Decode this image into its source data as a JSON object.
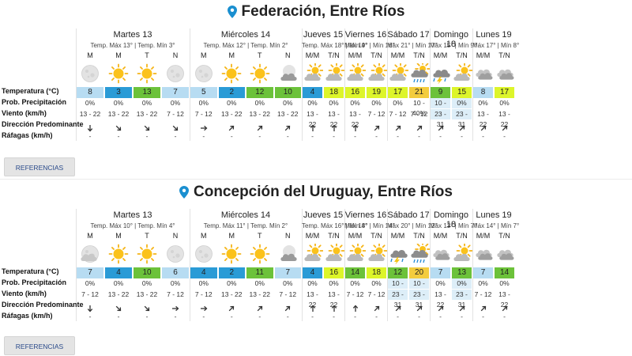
{
  "row_labels": {
    "temperature": "Temperatura (°C)",
    "precipitation": "Prob. Precipitación",
    "wind": "Viento (km/h)",
    "direction": "Dirección Predominante",
    "gusts": "Ráfagas (km/h)"
  },
  "refs_label": "REFERENCIAS",
  "colors": {
    "lightblue": "#b7dcf2",
    "blue": "#2a9bd6",
    "green": "#6cc23a",
    "yellow": "#ddf52a",
    "gold": "#f3cc3e"
  },
  "panels": [
    {
      "location": "Federación, Entre Ríos",
      "days": [
        {
          "name": "Martes 13",
          "minmax": "Temp. Máx 13° | Temp. Mín 3°",
          "slots": [
            {
              "label": "M",
              "icon": "moon-icon",
              "temp": "8",
              "color": "lightblue",
              "precip": "0%",
              "wind": "13 - 22",
              "dir": 180,
              "gust": "-",
              "hl": false
            },
            {
              "label": "M",
              "icon": "sun-icon",
              "temp": "3",
              "color": "blue",
              "precip": "0%",
              "wind": "13 - 22",
              "dir": 135,
              "gust": "-",
              "hl": false
            },
            {
              "label": "T",
              "icon": "sun-icon",
              "temp": "13",
              "color": "green",
              "precip": "0%",
              "wind": "13 - 22",
              "dir": 135,
              "gust": "-",
              "hl": false
            },
            {
              "label": "N",
              "icon": "moon-icon",
              "temp": "7",
              "color": "lightblue",
              "precip": "0%",
              "wind": "7 - 12",
              "dir": 135,
              "gust": "-",
              "hl": false
            }
          ]
        },
        {
          "name": "Miércoles 14",
          "minmax": "Temp. Máx 12° | Temp. Mín 2°",
          "slots": [
            {
              "label": "M",
              "icon": "moon-icon",
              "temp": "5",
              "color": "lightblue",
              "precip": "0%",
              "wind": "7 - 12",
              "dir": 90,
              "gust": "-",
              "hl": false
            },
            {
              "label": "M",
              "icon": "sun-icon",
              "temp": "2",
              "color": "blue",
              "precip": "0%",
              "wind": "13 - 22",
              "dir": 45,
              "gust": "-",
              "hl": false
            },
            {
              "label": "T",
              "icon": "sun-icon",
              "temp": "12",
              "color": "green",
              "precip": "0%",
              "wind": "13 - 22",
              "dir": 45,
              "gust": "-",
              "hl": false
            },
            {
              "label": "N",
              "icon": "night-cloud-icon",
              "temp": "10",
              "color": "green",
              "precip": "0%",
              "wind": "13 - 22",
              "dir": 45,
              "gust": "-",
              "hl": false
            }
          ]
        },
        {
          "name": "Jueves 15",
          "minmax": "Temp. Máx 18° | Mín 4°",
          "slots": [
            {
              "label": "M/M",
              "icon": "cloud-sun-icon",
              "temp": "4",
              "color": "blue",
              "precip": "0%",
              "wind": "13 - 22",
              "dir": 0,
              "gust": "-",
              "hl": false
            },
            {
              "label": "T/N",
              "icon": "cloud-sun-icon",
              "temp": "18",
              "color": "yellow",
              "precip": "0%",
              "wind": "13 - 22",
              "dir": 0,
              "gust": "-",
              "hl": false
            }
          ]
        },
        {
          "name": "Viernes 16",
          "minmax": "Máx 19° | Mín 16°",
          "slots": [
            {
              "label": "M/M",
              "icon": "cloud-sun-icon",
              "temp": "16",
              "color": "yellow",
              "precip": "0%",
              "wind": "13 - 22",
              "dir": 0,
              "gust": "-",
              "hl": false
            },
            {
              "label": "T/N",
              "icon": "cloud-sun-icon",
              "temp": "19",
              "color": "yellow",
              "precip": "0%",
              "wind": "7 - 12",
              "dir": 45,
              "gust": "-",
              "hl": false
            }
          ]
        },
        {
          "name": "Sábado 17",
          "minmax": "Máx 21° | Mín 17°",
          "slots": [
            {
              "label": "M/M",
              "icon": "cloud-sun-icon",
              "temp": "17",
              "color": "yellow",
              "precip": "0%",
              "wind": "7 - 12",
              "dir": 45,
              "gust": "-",
              "hl": false
            },
            {
              "label": "T/N",
              "icon": "rain-cloud-icon",
              "temp": "21",
              "color": "gold",
              "precip": "10 - 40%",
              "wind": "7 - 12",
              "dir": 45,
              "gust": "-",
              "hl": false
            }
          ]
        },
        {
          "name": "Domingo 18",
          "minmax": "Máx 15° | Mín 9°",
          "slots": [
            {
              "label": "M/M",
              "icon": "storm-cloud-icon",
              "temp": "9",
              "color": "green",
              "precip": "10 - 40%",
              "wind": "23 - 31",
              "dir": 45,
              "gust": "-",
              "hl": true
            },
            {
              "label": "T/N",
              "icon": "cloud-sun-icon",
              "temp": "15",
              "color": "yellow",
              "precip": "0%",
              "wind": "23 - 31",
              "dir": 45,
              "gust": "-",
              "hl": true
            }
          ]
        },
        {
          "name": "Lunes 19",
          "minmax": "Máx 17° | Mín 8°",
          "slots": [
            {
              "label": "M/M",
              "icon": "cloud-icon",
              "temp": "8",
              "color": "lightblue",
              "precip": "0%",
              "wind": "13 - 22",
              "dir": 45,
              "gust": "-",
              "hl": false
            },
            {
              "label": "T/N",
              "icon": "cloud-icon",
              "temp": "17",
              "color": "yellow",
              "precip": "0%",
              "wind": "13 - 22",
              "dir": 45,
              "gust": "-",
              "hl": false
            }
          ]
        }
      ]
    },
    {
      "location": "Concepción del Uruguay, Entre Ríos",
      "days": [
        {
          "name": "Martes 13",
          "minmax": "Temp. Máx 10° | Temp. Mín 4°",
          "slots": [
            {
              "label": "M",
              "icon": "moon-cloud-icon",
              "temp": "7",
              "color": "lightblue",
              "precip": "0%",
              "wind": "7 - 12",
              "dir": 180,
              "gust": "-",
              "hl": false
            },
            {
              "label": "M",
              "icon": "sun-icon",
              "temp": "4",
              "color": "blue",
              "precip": "0%",
              "wind": "13 - 22",
              "dir": 135,
              "gust": "-",
              "hl": false
            },
            {
              "label": "T",
              "icon": "sun-icon",
              "temp": "10",
              "color": "green",
              "precip": "0%",
              "wind": "13 - 22",
              "dir": 135,
              "gust": "-",
              "hl": false
            },
            {
              "label": "N",
              "icon": "moon-icon",
              "temp": "6",
              "color": "lightblue",
              "precip": "0%",
              "wind": "7 - 12",
              "dir": 90,
              "gust": "-",
              "hl": false
            }
          ]
        },
        {
          "name": "Miércoles 14",
          "minmax": "Temp. Máx 11° | Temp. Mín 2°",
          "slots": [
            {
              "label": "M",
              "icon": "moon-icon",
              "temp": "4",
              "color": "blue",
              "precip": "0%",
              "wind": "7 - 12",
              "dir": 90,
              "gust": "-",
              "hl": false
            },
            {
              "label": "M",
              "icon": "sun-icon",
              "temp": "2",
              "color": "blue",
              "precip": "0%",
              "wind": "13 - 22",
              "dir": 45,
              "gust": "-",
              "hl": false
            },
            {
              "label": "T",
              "icon": "sun-icon",
              "temp": "11",
              "color": "green",
              "precip": "0%",
              "wind": "13 - 22",
              "dir": 45,
              "gust": "-",
              "hl": false
            },
            {
              "label": "N",
              "icon": "night-cloud-icon",
              "temp": "7",
              "color": "lightblue",
              "precip": "0%",
              "wind": "7 - 12",
              "dir": 45,
              "gust": "-",
              "hl": false
            }
          ]
        },
        {
          "name": "Jueves 15",
          "minmax": "Temp. Máx 16° | Mín 4°",
          "slots": [
            {
              "label": "M/M",
              "icon": "cloud-sun-icon",
              "temp": "4",
              "color": "blue",
              "precip": "0%",
              "wind": "13 - 22",
              "dir": 0,
              "gust": "-",
              "hl": false
            },
            {
              "label": "T/N",
              "icon": "cloud-sun-icon",
              "temp": "16",
              "color": "yellow",
              "precip": "0%",
              "wind": "13 - 22",
              "dir": 0,
              "gust": "-",
              "hl": false
            }
          ]
        },
        {
          "name": "Viernes 16",
          "minmax": "Máx 18° | Mín 14°",
          "slots": [
            {
              "label": "M/M",
              "icon": "cloud-sun-icon",
              "temp": "14",
              "color": "green",
              "precip": "0%",
              "wind": "7 - 12",
              "dir": 0,
              "gust": "-",
              "hl": false
            },
            {
              "label": "T/N",
              "icon": "cloud-sun-icon",
              "temp": "18",
              "color": "yellow",
              "precip": "0%",
              "wind": "7 - 12",
              "dir": 45,
              "gust": "-",
              "hl": false
            }
          ]
        },
        {
          "name": "Sábado 17",
          "minmax": "Máx 20° | Mín 12°",
          "slots": [
            {
              "label": "M/M",
              "icon": "storm-cloud-icon",
              "temp": "12",
              "color": "green",
              "precip": "10 - 40%",
              "wind": "23 - 31",
              "dir": 45,
              "gust": "-",
              "hl": true
            },
            {
              "label": "T/N",
              "icon": "rain-cloud-icon",
              "temp": "20",
              "color": "gold",
              "precip": "10 - 40%",
              "wind": "23 - 31",
              "dir": 45,
              "gust": "-",
              "hl": true
            }
          ]
        },
        {
          "name": "Domingo 18",
          "minmax": "Máx 13° | Mín 7°",
          "slots": [
            {
              "label": "M/M",
              "icon": "cloud-icon",
              "temp": "7",
              "color": "lightblue",
              "precip": "0%",
              "wind": "13 - 22",
              "dir": 45,
              "gust": "-",
              "hl": false
            },
            {
              "label": "T/N",
              "icon": "cloud-sun-icon",
              "temp": "13",
              "color": "green",
              "precip": "0%",
              "wind": "23 - 31",
              "dir": 45,
              "gust": "-",
              "hl": true
            }
          ]
        },
        {
          "name": "Lunes 19",
          "minmax": "Máx 14° | Mín 7°",
          "slots": [
            {
              "label": "M/M",
              "icon": "cloud-icon",
              "temp": "7",
              "color": "lightblue",
              "precip": "0%",
              "wind": "7 - 12",
              "dir": 45,
              "gust": "-",
              "hl": false
            },
            {
              "label": "T/N",
              "icon": "cloud-icon",
              "temp": "14",
              "color": "green",
              "precip": "0%",
              "wind": "13 - 22",
              "dir": 45,
              "gust": "-",
              "hl": false
            }
          ]
        }
      ]
    }
  ]
}
